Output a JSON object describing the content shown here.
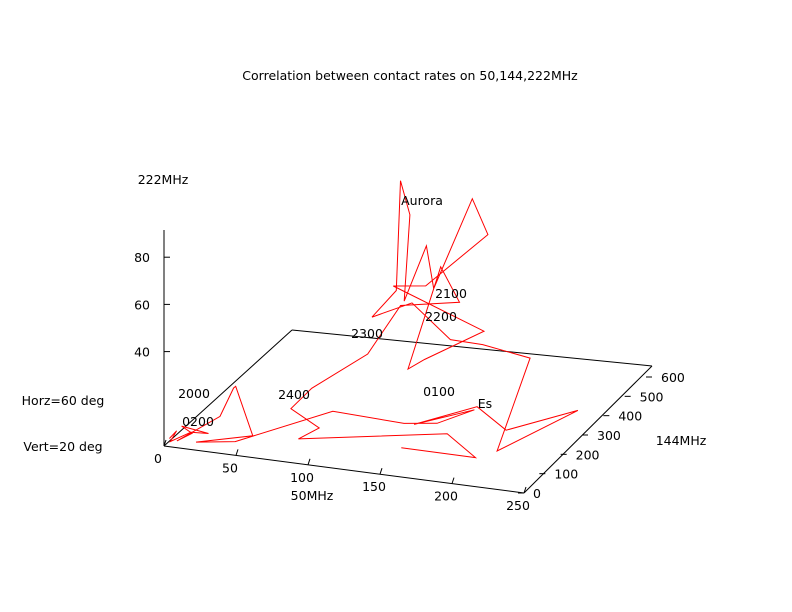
{
  "chart_data": {
    "type": "line",
    "projection": "3d",
    "title": "Correlation between contact rates on 50,144,222MHz",
    "xlabel": "50MHz",
    "ylabel": "144MHz",
    "zlabel": "222MHz",
    "xlim": [
      0,
      250
    ],
    "ylim": [
      0,
      600
    ],
    "zlim": [
      0,
      90
    ],
    "xticks": [
      0,
      50,
      100,
      150,
      200,
      250
    ],
    "yticks": [
      0,
      100,
      200,
      300,
      400,
      500,
      600
    ],
    "zticks": [
      40,
      60,
      80
    ],
    "view": {
      "horizontal_deg": 60,
      "vertical_deg": 20
    },
    "view_labels": [
      "Horz=60 deg",
      "Vert=20 deg"
    ],
    "series_color": "#ff0000",
    "annotations": [
      {
        "text": "Aurora"
      },
      {
        "text": "Es"
      },
      {
        "text": "2100"
      },
      {
        "text": "2200"
      },
      {
        "text": "2300"
      },
      {
        "text": "2400"
      },
      {
        "text": "2000"
      },
      {
        "text": "0200"
      },
      {
        "text": "0100"
      }
    ],
    "series": [
      {
        "values": [
          {
            "x": 3,
            "y": 5,
            "z": 3
          },
          {
            "x": 7,
            "y": 12,
            "z": 6
          },
          {
            "x": 4,
            "y": 3,
            "z": 2
          },
          {
            "x": 15,
            "y": 25,
            "z": 5
          },
          {
            "x": 25,
            "y": 40,
            "z": 4
          },
          {
            "x": 10,
            "y": 15,
            "z": 8
          },
          {
            "x": 18,
            "y": 10,
            "z": 6
          },
          {
            "x": 6,
            "y": 20,
            "z": 1
          },
          {
            "x": 30,
            "y": 60,
            "z": 10
          },
          {
            "x": 35,
            "y": 90,
            "z": 20
          },
          {
            "x": 32,
            "y": 120,
            "z": 18
          },
          {
            "x": 55,
            "y": 45,
            "z": 5
          },
          {
            "x": 20,
            "y": 15,
            "z": 2
          },
          {
            "x": 45,
            "y": 30,
            "z": 3
          },
          {
            "x": 95,
            "y": 150,
            "z": 10
          },
          {
            "x": 140,
            "y": 180,
            "z": 6
          },
          {
            "x": 160,
            "y": 200,
            "z": 6
          },
          {
            "x": 180,
            "y": 240,
            "z": 10
          },
          {
            "x": 150,
            "y": 160,
            "z": 8
          },
          {
            "x": 170,
            "y": 320,
            "z": 4
          },
          {
            "x": 205,
            "y": 220,
            "z": 5
          },
          {
            "x": 240,
            "y": 320,
            "z": 8
          },
          {
            "x": 215,
            "y": 110,
            "z": 6
          },
          {
            "x": 195,
            "y": 400,
            "z": 20
          },
          {
            "x": 165,
            "y": 380,
            "z": 25
          },
          {
            "x": 150,
            "y": 330,
            "z": 30
          },
          {
            "x": 110,
            "y": 420,
            "z": 35
          },
          {
            "x": 100,
            "y": 300,
            "z": 38
          },
          {
            "x": 108,
            "y": 360,
            "z": 45
          },
          {
            "x": 105,
            "y": 400,
            "z": 88
          },
          {
            "x": 113,
            "y": 390,
            "z": 75
          },
          {
            "x": 112,
            "y": 370,
            "z": 40
          },
          {
            "x": 120,
            "y": 420,
            "z": 60
          },
          {
            "x": 131,
            "y": 380,
            "z": 46
          },
          {
            "x": 140,
            "y": 500,
            "z": 75
          },
          {
            "x": 142,
            "y": 560,
            "z": 55
          },
          {
            "x": 118,
            "y": 430,
            "z": 42
          },
          {
            "x": 100,
            "y": 400,
            "z": 43
          },
          {
            "x": 160,
            "y": 420,
            "z": 27
          },
          {
            "x": 135,
            "y": 310,
            "z": 22
          },
          {
            "x": 125,
            "y": 300,
            "z": 18
          },
          {
            "x": 127,
            "y": 440,
            "z": 50
          },
          {
            "x": 140,
            "y": 440,
            "z": 36
          },
          {
            "x": 108,
            "y": 380,
            "z": 37
          },
          {
            "x": 100,
            "y": 280,
            "z": 24
          },
          {
            "x": 70,
            "y": 220,
            "z": 12
          },
          {
            "x": 60,
            "y": 190,
            "z": 5
          },
          {
            "x": 90,
            "y": 120,
            "z": 5
          },
          {
            "x": 80,
            "y": 90,
            "z": 2
          },
          {
            "x": 170,
            "y": 180,
            "z": 4
          },
          {
            "x": 200,
            "y": 110,
            "z": 2
          },
          {
            "x": 150,
            "y": 100,
            "z": 3
          }
        ]
      }
    ]
  }
}
